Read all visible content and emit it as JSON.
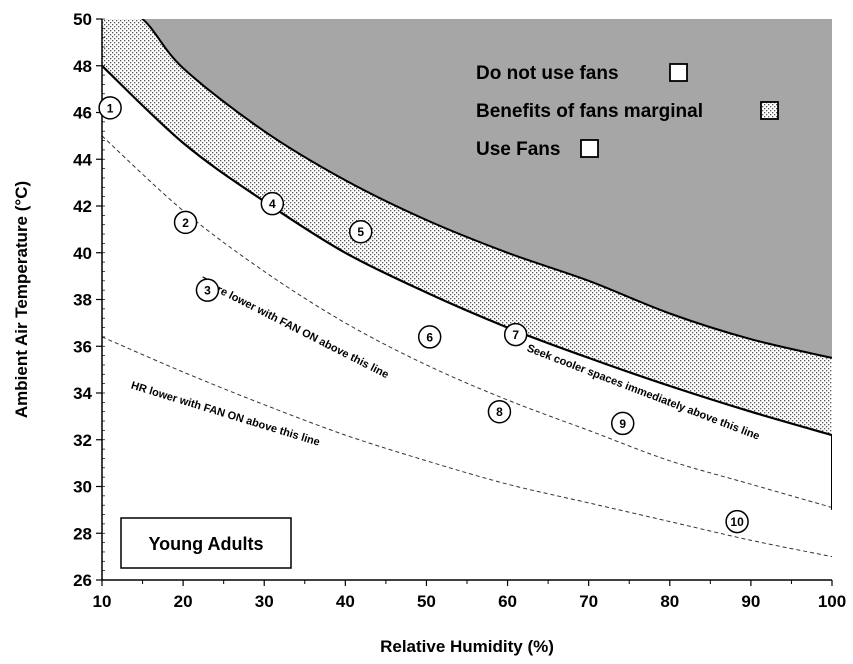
{
  "chart_data": {
    "type": "line",
    "xlabel": "Relative Humidity (%)",
    "ylabel": "Ambient Air Temperature (°C)",
    "xlim": [
      10,
      100
    ],
    "ylim": [
      26,
      50
    ],
    "x_ticks": [
      "10",
      "20",
      "30",
      "40",
      "50",
      "60",
      "70",
      "80",
      "90",
      "100"
    ],
    "y_ticks": [
      "26",
      "28",
      "30",
      "32",
      "34",
      "36",
      "38",
      "40",
      "42",
      "44",
      "46",
      "48",
      "50"
    ],
    "grid": false,
    "colors": {
      "do_not_use": "#a6a6a6",
      "marginal": "#ffffff",
      "use": "#ffffff",
      "line": "#000000"
    },
    "curves": {
      "upper": {
        "x": [
          10,
          15,
          20,
          30,
          40,
          50,
          60,
          70,
          80,
          90,
          100
        ],
        "y": [
          50.9,
          50.0,
          47.9,
          45.2,
          43.1,
          41.4,
          40.0,
          38.8,
          37.4,
          36.3,
          35.5
        ]
      },
      "threshold": {
        "x": [
          10,
          20,
          30,
          40,
          50,
          60,
          70,
          80,
          90,
          100
        ],
        "y": [
          48.0,
          44.7,
          42.2,
          40.0,
          38.3,
          36.8,
          35.5,
          34.3,
          33.2,
          32.2
        ]
      },
      "tcore": {
        "x": [
          10,
          20,
          30,
          40,
          50,
          60,
          70,
          80,
          90,
          100
        ],
        "y": [
          45.0,
          41.8,
          39.2,
          37.0,
          35.2,
          33.7,
          32.4,
          31.1,
          30.1,
          29.1
        ]
      },
      "hr": {
        "x": [
          10,
          20,
          30,
          40,
          50,
          60,
          70,
          80,
          90,
          100
        ],
        "y": [
          36.4,
          34.9,
          33.5,
          32.2,
          31.1,
          30.1,
          29.3,
          28.5,
          27.7,
          27.0
        ]
      }
    },
    "markers": [
      {
        "label": "1",
        "x": 11.0,
        "y": 46.2
      },
      {
        "label": "2",
        "x": 20.3,
        "y": 41.3
      },
      {
        "label": "3",
        "x": 23.0,
        "y": 38.4
      },
      {
        "label": "4",
        "x": 31.0,
        "y": 42.1
      },
      {
        "label": "5",
        "x": 41.9,
        "y": 40.9
      },
      {
        "label": "6",
        "x": 50.4,
        "y": 36.4
      },
      {
        "label": "7",
        "x": 61.0,
        "y": 36.5
      },
      {
        "label": "8",
        "x": 59.0,
        "y": 33.2
      },
      {
        "label": "9",
        "x": 74.2,
        "y": 32.7
      },
      {
        "label": "10",
        "x": 88.3,
        "y": 28.5
      }
    ],
    "annotations": [
      {
        "text": "Tcore lower with FAN ON above this line",
        "x": 22.0,
        "y": 38.7,
        "angle": 27
      },
      {
        "text": "HR lower with FAN ON above this line",
        "x": 13.5,
        "y": 34.2,
        "angle": 17
      },
      {
        "text": "Seek cooler spaces immediately above this line",
        "x": 62.3,
        "y": 35.8,
        "angle": 21
      }
    ],
    "legend": {
      "placement": "top-right",
      "items": [
        {
          "label": "Do not use fans",
          "swatch": "solid"
        },
        {
          "label": "Benefits of fans marginal",
          "swatch": "dotted"
        },
        {
          "label": "Use Fans",
          "swatch": "solid"
        }
      ]
    },
    "group_label": "Young Adults"
  }
}
